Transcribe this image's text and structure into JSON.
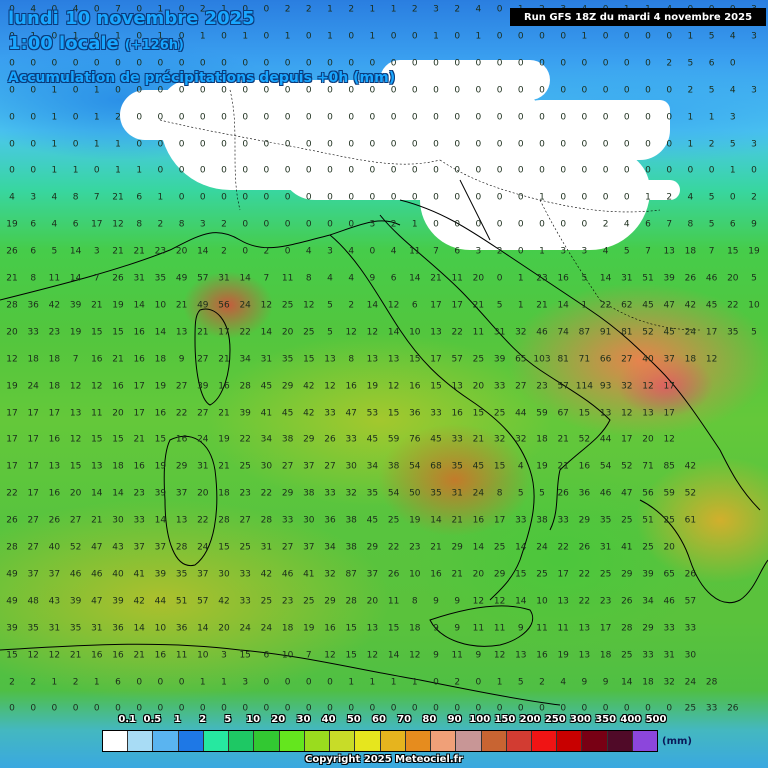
{
  "header": {
    "date_line": "lundi 10 novembre 2025",
    "time_line": "1:00 locale",
    "lead": "(+126h)",
    "title": "Accumulation de précipitations depuis +0h (mm)"
  },
  "run_info": "Run GFS 18Z du mardi 4 novembre 2025",
  "legend": {
    "labels": [
      "0.1",
      "0.5",
      "1",
      "2",
      "5",
      "10",
      "20",
      "30",
      "40",
      "50",
      "60",
      "70",
      "80",
      "90",
      "100",
      "150",
      "200",
      "250",
      "300",
      "350",
      "400",
      "500"
    ],
    "colors": [
      "#ffffff",
      "#a8dcf5",
      "#5ab4f0",
      "#1e78e6",
      "#26e8a0",
      "#1ec864",
      "#32c832",
      "#64e61e",
      "#9adc1e",
      "#c8dc28",
      "#e6e61e",
      "#e6b41e",
      "#e68c1e",
      "#f0a078",
      "#c89696",
      "#c86432",
      "#d23c32",
      "#f01414",
      "#c80000",
      "#780014",
      "#500a28",
      "#8c46dc"
    ],
    "unit": "(mm)"
  },
  "copyright": "Copyright 2025 Meteociel.fr",
  "grid_values": [
    [
      "0",
      "4",
      "0",
      "4",
      "0",
      "7",
      "0",
      "1",
      "0",
      "2",
      "1",
      "0",
      "0",
      "2",
      "2",
      "1",
      "2",
      "1",
      "1",
      "2",
      "3",
      "2",
      "4",
      "0",
      "1",
      "2",
      "3",
      "4",
      "0",
      "1",
      "1",
      "4",
      "0",
      "0",
      "0",
      "3"
    ],
    [
      "0",
      "1",
      "0",
      "1",
      "0",
      "1",
      "0",
      "1",
      "0",
      "1",
      "0",
      "1",
      "0",
      "1",
      "0",
      "1",
      "0",
      "1",
      "0",
      "0",
      "1",
      "0",
      "1",
      "0",
      "0",
      "0",
      "0",
      "1",
      "0",
      "0",
      "0",
      "0",
      "1",
      "5",
      "4",
      "3"
    ],
    [
      "0",
      "0",
      "0",
      "0",
      "0",
      "0",
      "0",
      "0",
      "0",
      "0",
      "0",
      "0",
      "0",
      "0",
      "0",
      "0",
      "0",
      "0",
      "0",
      "0",
      "0",
      "0",
      "0",
      "0",
      "0",
      "0",
      "0",
      "0",
      "0",
      "0",
      "0",
      "2",
      "5",
      "6",
      "0"
    ],
    [
      "0",
      "0",
      "1",
      "0",
      "1",
      "0",
      "0",
      "0",
      "0",
      "0",
      "0",
      "0",
      "0",
      "0",
      "0",
      "0",
      "0",
      "0",
      "0",
      "0",
      "0",
      "0",
      "0",
      "0",
      "0",
      "0",
      "0",
      "0",
      "0",
      "0",
      "0",
      "0",
      "2",
      "5",
      "4",
      "3"
    ],
    [
      "0",
      "0",
      "1",
      "0",
      "1",
      "2",
      "0",
      "0",
      "0",
      "0",
      "0",
      "0",
      "0",
      "0",
      "0",
      "0",
      "0",
      "0",
      "0",
      "0",
      "0",
      "0",
      "0",
      "0",
      "0",
      "0",
      "0",
      "0",
      "0",
      "0",
      "0",
      "0",
      "1",
      "1",
      "3"
    ],
    [
      "0",
      "0",
      "1",
      "0",
      "1",
      "1",
      "0",
      "0",
      "0",
      "0",
      "0",
      "0",
      "0",
      "0",
      "0",
      "0",
      "0",
      "0",
      "0",
      "0",
      "0",
      "0",
      "0",
      "0",
      "0",
      "0",
      "0",
      "0",
      "0",
      "0",
      "0",
      "0",
      "1",
      "2",
      "5",
      "3"
    ],
    [
      "0",
      "0",
      "1",
      "1",
      "0",
      "1",
      "1",
      "0",
      "0",
      "0",
      "0",
      "0",
      "0",
      "0",
      "0",
      "0",
      "0",
      "0",
      "0",
      "0",
      "0",
      "0",
      "0",
      "0",
      "0",
      "0",
      "0",
      "0",
      "0",
      "0",
      "0",
      "0",
      "0",
      "0",
      "1",
      "0"
    ],
    [
      "4",
      "3",
      "4",
      "8",
      "7",
      "21",
      "6",
      "1",
      "0",
      "0",
      "0",
      "0",
      "0",
      "0",
      "0",
      "0",
      "0",
      "0",
      "0",
      "0",
      "0",
      "0",
      "0",
      "0",
      "0",
      "1",
      "0",
      "0",
      "0",
      "0",
      "1",
      "2",
      "4",
      "5",
      "0",
      "2"
    ],
    [
      "19",
      "6",
      "4",
      "6",
      "17",
      "12",
      "8",
      "2",
      "8",
      "3",
      "2",
      "0",
      "0",
      "0",
      "0",
      "0",
      "0",
      "3",
      "2",
      "1",
      "0",
      "0",
      "0",
      "0",
      "0",
      "0",
      "0",
      "0",
      "2",
      "4",
      "6",
      "7",
      "8",
      "5",
      "6",
      "9"
    ],
    [
      "26",
      "6",
      "5",
      "14",
      "3",
      "21",
      "21",
      "23",
      "20",
      "14",
      "2",
      "0",
      "2",
      "0",
      "4",
      "3",
      "4",
      "0",
      "4",
      "11",
      "7",
      "6",
      "3",
      "2",
      "0",
      "1",
      "3",
      "3",
      "4",
      "5",
      "7",
      "13",
      "18",
      "7",
      "15",
      "19"
    ],
    [
      "21",
      "8",
      "11",
      "14",
      "7",
      "26",
      "31",
      "35",
      "49",
      "57",
      "31",
      "14",
      "7",
      "11",
      "8",
      "4",
      "4",
      "9",
      "6",
      "14",
      "21",
      "11",
      "20",
      "0",
      "1",
      "23",
      "16",
      "5",
      "14",
      "31",
      "51",
      "39",
      "26",
      "46",
      "20",
      "5"
    ],
    [
      "28",
      "36",
      "42",
      "39",
      "21",
      "19",
      "14",
      "10",
      "21",
      "49",
      "56",
      "24",
      "12",
      "25",
      "12",
      "5",
      "2",
      "14",
      "12",
      "6",
      "17",
      "17",
      "21",
      "5",
      "1",
      "21",
      "14",
      "1",
      "22",
      "62",
      "45",
      "47",
      "42",
      "45",
      "22",
      "10"
    ],
    [
      "20",
      "33",
      "23",
      "19",
      "15",
      "15",
      "16",
      "14",
      "13",
      "21",
      "17",
      "22",
      "14",
      "20",
      "25",
      "5",
      "12",
      "12",
      "14",
      "10",
      "13",
      "22",
      "11",
      "31",
      "32",
      "46",
      "74",
      "87",
      "91",
      "81",
      "52",
      "45",
      "24",
      "17",
      "35",
      "5"
    ],
    [
      "12",
      "18",
      "18",
      "7",
      "16",
      "21",
      "16",
      "18",
      "9",
      "27",
      "21",
      "34",
      "31",
      "35",
      "15",
      "13",
      "8",
      "13",
      "13",
      "15",
      "17",
      "57",
      "25",
      "39",
      "65",
      "103",
      "81",
      "71",
      "66",
      "27",
      "40",
      "37",
      "18",
      "12"
    ],
    [
      "19",
      "24",
      "18",
      "12",
      "12",
      "16",
      "17",
      "19",
      "27",
      "39",
      "16",
      "28",
      "45",
      "29",
      "42",
      "12",
      "16",
      "19",
      "12",
      "16",
      "15",
      "13",
      "20",
      "33",
      "27",
      "23",
      "57",
      "114",
      "93",
      "32",
      "12",
      "17"
    ],
    [
      "17",
      "17",
      "17",
      "13",
      "11",
      "20",
      "17",
      "16",
      "22",
      "27",
      "21",
      "39",
      "41",
      "45",
      "42",
      "33",
      "47",
      "53",
      "15",
      "36",
      "33",
      "16",
      "15",
      "25",
      "44",
      "59",
      "67",
      "15",
      "13",
      "12",
      "13",
      "17"
    ],
    [
      "17",
      "17",
      "16",
      "12",
      "15",
      "15",
      "21",
      "15",
      "16",
      "24",
      "19",
      "22",
      "34",
      "38",
      "29",
      "26",
      "33",
      "45",
      "59",
      "76",
      "45",
      "33",
      "21",
      "32",
      "32",
      "18",
      "21",
      "52",
      "44",
      "17",
      "20",
      "12"
    ],
    [
      "17",
      "17",
      "13",
      "15",
      "13",
      "18",
      "16",
      "19",
      "29",
      "31",
      "21",
      "25",
      "30",
      "27",
      "37",
      "27",
      "30",
      "34",
      "38",
      "54",
      "68",
      "35",
      "45",
      "15",
      "4",
      "19",
      "21",
      "16",
      "54",
      "52",
      "71",
      "85",
      "42"
    ],
    [
      "22",
      "17",
      "16",
      "20",
      "14",
      "14",
      "23",
      "39",
      "37",
      "20",
      "18",
      "23",
      "22",
      "29",
      "38",
      "33",
      "32",
      "35",
      "54",
      "50",
      "35",
      "31",
      "24",
      "8",
      "5",
      "5",
      "26",
      "36",
      "46",
      "47",
      "56",
      "59",
      "52"
    ],
    [
      "26",
      "27",
      "26",
      "27",
      "21",
      "30",
      "33",
      "14",
      "13",
      "22",
      "28",
      "27",
      "28",
      "33",
      "30",
      "36",
      "38",
      "45",
      "25",
      "19",
      "14",
      "21",
      "16",
      "17",
      "33",
      "38",
      "33",
      "29",
      "35",
      "25",
      "51",
      "25",
      "61"
    ],
    [
      "28",
      "27",
      "40",
      "52",
      "47",
      "43",
      "37",
      "37",
      "28",
      "24",
      "15",
      "25",
      "31",
      "27",
      "37",
      "34",
      "38",
      "29",
      "22",
      "23",
      "21",
      "29",
      "14",
      "25",
      "14",
      "24",
      "22",
      "26",
      "31",
      "41",
      "25",
      "20"
    ],
    [
      "49",
      "37",
      "37",
      "46",
      "46",
      "40",
      "41",
      "39",
      "35",
      "37",
      "30",
      "33",
      "42",
      "46",
      "41",
      "32",
      "87",
      "37",
      "26",
      "10",
      "16",
      "21",
      "20",
      "29",
      "15",
      "25",
      "17",
      "22",
      "25",
      "29",
      "39",
      "65",
      "26"
    ],
    [
      "49",
      "48",
      "43",
      "39",
      "47",
      "39",
      "42",
      "44",
      "51",
      "57",
      "42",
      "33",
      "25",
      "23",
      "25",
      "29",
      "28",
      "20",
      "11",
      "8",
      "9",
      "9",
      "12",
      "12",
      "14",
      "10",
      "13",
      "22",
      "23",
      "26",
      "34",
      "46",
      "57"
    ],
    [
      "39",
      "35",
      "31",
      "35",
      "31",
      "36",
      "14",
      "10",
      "36",
      "14",
      "20",
      "24",
      "24",
      "18",
      "19",
      "16",
      "15",
      "13",
      "15",
      "18",
      "9",
      "9",
      "11",
      "11",
      "9",
      "11",
      "11",
      "13",
      "17",
      "28",
      "29",
      "33",
      "33"
    ],
    [
      "15",
      "12",
      "12",
      "21",
      "16",
      "16",
      "21",
      "16",
      "11",
      "10",
      "3",
      "15",
      "6",
      "10",
      "7",
      "12",
      "15",
      "12",
      "14",
      "12",
      "9",
      "11",
      "9",
      "12",
      "13",
      "16",
      "19",
      "13",
      "18",
      "25",
      "33",
      "31",
      "30"
    ],
    [
      "2",
      "2",
      "1",
      "2",
      "1",
      "6",
      "0",
      "0",
      "0",
      "1",
      "1",
      "3",
      "0",
      "0",
      "0",
      "0",
      "1",
      "1",
      "1",
      "1",
      "0",
      "2",
      "0",
      "1",
      "5",
      "2",
      "4",
      "9",
      "9",
      "14",
      "18",
      "32",
      "24",
      "28"
    ],
    [
      "0",
      "0",
      "0",
      "0",
      "0",
      "0",
      "0",
      "0",
      "0",
      "0",
      "0",
      "0",
      "0",
      "0",
      "0",
      "0",
      "0",
      "0",
      "0",
      "0",
      "0",
      "0",
      "0",
      "0",
      "0",
      "0",
      "0",
      "0",
      "0",
      "0",
      "0",
      "0",
      "25",
      "33",
      "26"
    ]
  ]
}
